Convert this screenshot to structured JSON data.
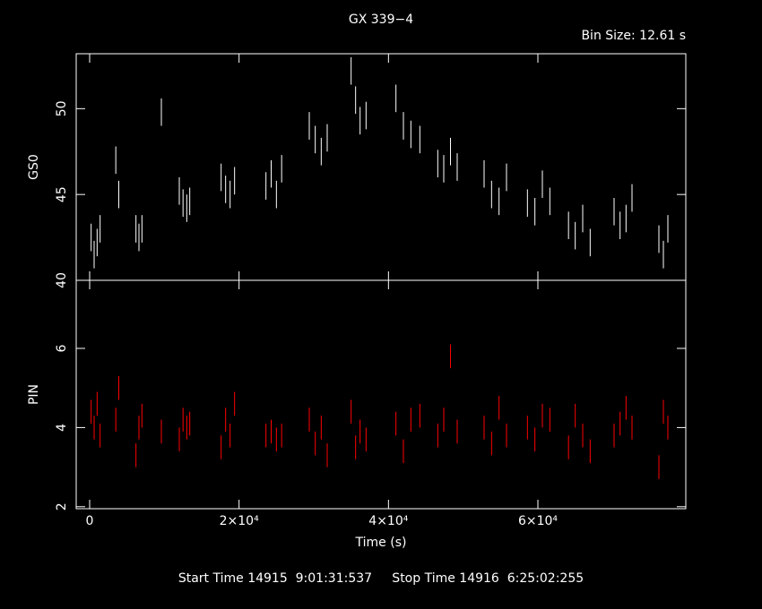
{
  "chart_data": [
    {
      "type": "scatter",
      "title": "GX 339−4",
      "subtitle": "Bin Size: 12.61 s",
      "ylabel": "GS0",
      "x": [
        200,
        600,
        1000,
        1400,
        3500,
        3900,
        6200,
        6600,
        7000,
        9600,
        12000,
        12500,
        13000,
        13400,
        17600,
        18200,
        18800,
        19400,
        23600,
        24300,
        25000,
        25700,
        29400,
        30200,
        31000,
        31800,
        35000,
        35600,
        36200,
        37000,
        41000,
        42000,
        43000,
        44200,
        46600,
        47400,
        48300,
        49200,
        52800,
        53800,
        54800,
        55800,
        58600,
        59600,
        60600,
        61600,
        64100,
        65000,
        66000,
        67000,
        70200,
        71000,
        71800,
        72600,
        76200,
        76800,
        77400
      ],
      "series": [
        {
          "color": "#ffffff",
          "yerr": 0.8,
          "values": [
            42.5,
            41.5,
            42.2,
            43,
            47,
            45,
            43,
            42.5,
            43,
            49.8,
            45.2,
            44.5,
            44.2,
            44.6,
            46,
            45.3,
            45,
            45.8,
            45.5,
            46.2,
            45,
            46.5,
            49,
            48.2,
            47.5,
            48.3,
            52.2,
            50.5,
            49.3,
            49.6,
            50.6,
            49,
            48.5,
            48.2,
            46.8,
            46.5,
            47.5,
            46.6,
            46.2,
            45,
            44.6,
            46,
            44.5,
            44,
            45.6,
            44.6,
            43.2,
            42.6,
            43.6,
            42.2,
            44,
            43.2,
            43.6,
            44.8,
            42.4,
            41.5,
            43
          ]
        }
      ],
      "xlim": [
        -1800,
        79800
      ],
      "xticks": [
        0,
        20000,
        40000,
        60000
      ],
      "ylim": [
        40,
        53.2
      ],
      "yticks": [
        40,
        45,
        50
      ]
    },
    {
      "type": "scatter",
      "ylabel": "PIN",
      "xlabel": "Time (s)",
      "footer": "Start Time 14915  9:01:31:537     Stop Time 14916  6:25:02:255",
      "x": [
        200,
        600,
        1000,
        1400,
        3500,
        3900,
        6200,
        6600,
        7000,
        9600,
        12000,
        12500,
        13000,
        13400,
        17600,
        18200,
        18800,
        19400,
        23600,
        24300,
        25000,
        25700,
        29400,
        30200,
        31000,
        31800,
        35000,
        35600,
        36200,
        37000,
        41000,
        42000,
        43000,
        44200,
        46600,
        47400,
        48300,
        49200,
        52800,
        53800,
        54800,
        55800,
        58600,
        59600,
        60600,
        61600,
        64100,
        65000,
        66000,
        67000,
        70200,
        71000,
        71800,
        72600,
        76200,
        76800,
        77400
      ],
      "series": [
        {
          "color": "#ff0000",
          "yerr": 0.3,
          "values": [
            4.4,
            4.0,
            4.6,
            3.8,
            4.2,
            5.0,
            3.3,
            4.0,
            4.3,
            3.9,
            3.7,
            4.2,
            4.0,
            4.1,
            3.5,
            4.2,
            3.8,
            4.6,
            3.8,
            3.9,
            3.7,
            3.8,
            4.2,
            3.6,
            4.0,
            3.3,
            4.4,
            3.5,
            3.9,
            3.7,
            4.1,
            3.4,
            4.2,
            4.3,
            3.8,
            4.2,
            5.8,
            3.9,
            4.0,
            3.6,
            4.5,
            3.8,
            4.0,
            3.7,
            4.3,
            4.2,
            3.5,
            4.3,
            3.8,
            3.4,
            3.8,
            4.1,
            4.5,
            4.0,
            3.0,
            4.4,
            4.0
          ]
        }
      ],
      "xlim": [
        -1800,
        79800
      ],
      "xticks": [
        0,
        {
          "value": 20000,
          "label": "2×10⁴"
        },
        {
          "value": 40000,
          "label": "4×10⁴"
        },
        {
          "value": 60000,
          "label": "6×10⁴"
        }
      ],
      "ylim": [
        1.95,
        7.72
      ],
      "yticks": [
        2,
        4,
        6
      ]
    }
  ]
}
